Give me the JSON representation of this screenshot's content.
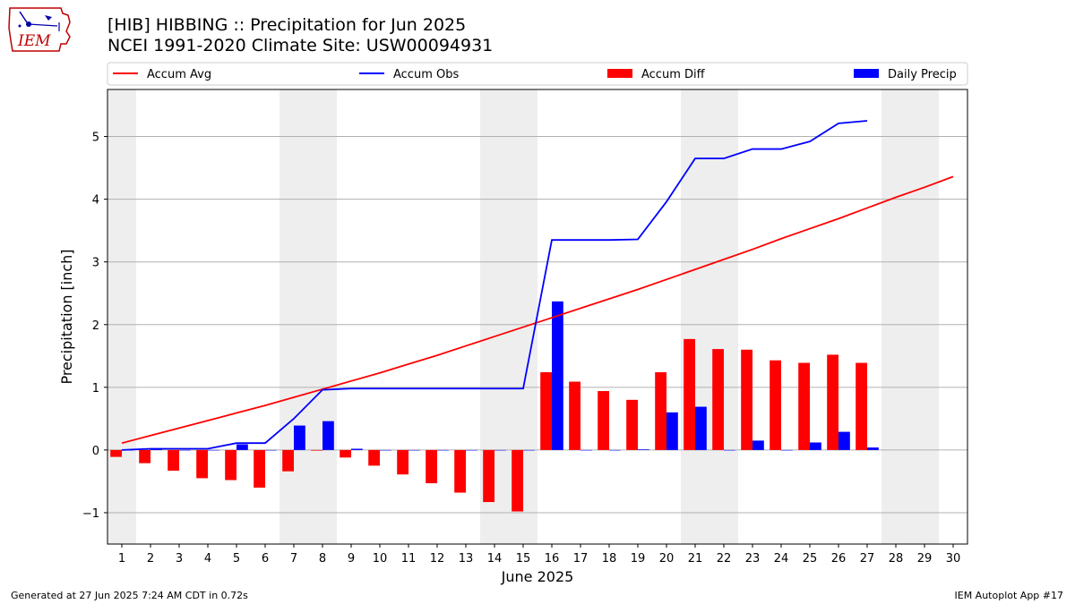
{
  "title_line1": "[HIB] HIBBING :: Precipitation for Jun 2025",
  "title_line2": "NCEI 1991-2020 Climate Site: USW00094931",
  "logo_text": "IEM",
  "footer_left": "Generated at 27 Jun 2025 7:24 AM CDT in 0.72s",
  "footer_right": "IEM Autoplot App #17",
  "colors": {
    "avg": "#ff0000",
    "obs": "#0000ff",
    "diff": "#ff0000",
    "daily": "#0000ff",
    "weekend": "#eeeeee",
    "grid": "#b0b0b0"
  },
  "chart_data": {
    "type": "bar",
    "xlabel": "June 2025",
    "ylabel": "Precipitation [inch]",
    "x": [
      1,
      2,
      3,
      4,
      5,
      6,
      7,
      8,
      9,
      10,
      11,
      12,
      13,
      14,
      15,
      16,
      17,
      18,
      19,
      20,
      21,
      22,
      23,
      24,
      25,
      26,
      27,
      28,
      29,
      30
    ],
    "xlim": [
      0.5,
      30.5
    ],
    "ylim": [
      -1.5,
      5.75
    ],
    "yticks": [
      -1,
      0,
      1,
      2,
      3,
      4,
      5
    ],
    "grid": "horizontal",
    "legend_position": "top",
    "weekend_days": [
      1,
      7,
      8,
      14,
      15,
      21,
      22,
      28,
      29
    ],
    "series": [
      {
        "name": "Accum Avg",
        "kind": "line",
        "values": [
          0.11,
          0.23,
          0.35,
          0.47,
          0.59,
          0.71,
          0.84,
          0.97,
          1.1,
          1.23,
          1.37,
          1.51,
          1.66,
          1.81,
          1.96,
          2.11,
          2.26,
          2.41,
          2.56,
          2.72,
          2.88,
          3.04,
          3.2,
          3.37,
          3.53,
          3.69,
          3.86,
          4.03,
          4.19,
          4.36
        ]
      },
      {
        "name": "Accum Obs",
        "kind": "line",
        "values": [
          0.0,
          0.02,
          0.02,
          0.02,
          0.11,
          0.11,
          0.5,
          0.96,
          0.98,
          0.98,
          0.98,
          0.98,
          0.98,
          0.98,
          0.98,
          3.35,
          3.35,
          3.35,
          3.36,
          3.96,
          4.65,
          4.65,
          4.8,
          4.8,
          4.92,
          5.21,
          5.25,
          null,
          null,
          null
        ]
      },
      {
        "name": "Accum Diff",
        "kind": "bar",
        "values": [
          -0.11,
          -0.21,
          -0.33,
          -0.45,
          -0.48,
          -0.6,
          -0.34,
          -0.01,
          -0.12,
          -0.25,
          -0.39,
          -0.53,
          -0.68,
          -0.83,
          -0.98,
          1.24,
          1.09,
          0.94,
          0.8,
          1.24,
          1.77,
          1.61,
          1.6,
          1.43,
          1.39,
          1.52,
          1.39,
          null,
          null,
          null
        ]
      },
      {
        "name": "Daily Precip",
        "kind": "bar",
        "values": [
          0.0,
          0.02,
          0.0,
          0.0,
          0.09,
          0.0,
          0.39,
          0.46,
          0.02,
          0.0,
          0.0,
          0.0,
          0.0,
          0.0,
          0.0,
          2.37,
          0.0,
          0.0,
          0.01,
          0.6,
          0.69,
          0.0,
          0.15,
          0.0,
          0.12,
          0.29,
          0.04,
          null,
          null,
          null
        ]
      }
    ]
  }
}
